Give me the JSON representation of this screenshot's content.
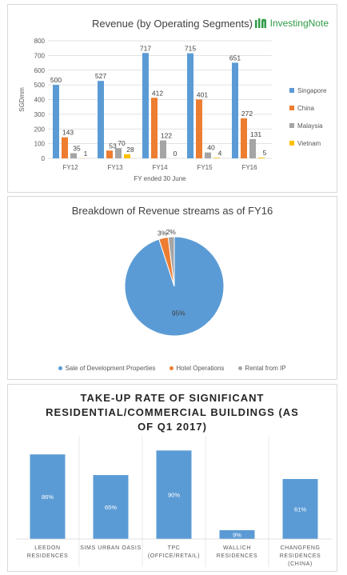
{
  "chart_data": [
    {
      "type": "bar",
      "title": "Revenue (by Operating Segments)",
      "xlabel": "FY ended 30 June",
      "ylabel": "SGDmm",
      "ylim": [
        0,
        800
      ],
      "yticks": [
        "0",
        "100",
        "200",
        "300",
        "400",
        "500",
        "600",
        "700",
        "800"
      ],
      "grid": true,
      "legend": "right",
      "categories": [
        "FY12",
        "FY13",
        "FY14",
        "FY15",
        "FY16"
      ],
      "series": [
        {
          "name": "Singapore",
          "color": "#5b9bd5",
          "values": [
            500,
            527,
            717,
            715,
            651
          ],
          "labels": [
            "500",
            "527",
            "717",
            "715",
            "651"
          ]
        },
        {
          "name": "China",
          "color": "#ed7d31",
          "values": [
            143,
            53,
            412,
            401,
            272
          ],
          "labels": [
            "143",
            "53",
            "412",
            "401",
            "272"
          ]
        },
        {
          "name": "Malaysia",
          "color": "#a5a5a5",
          "values": [
            35,
            70,
            122,
            40,
            131
          ],
          "labels": [
            "35",
            "70",
            "122",
            "40",
            "131"
          ]
        },
        {
          "name": "Vietnam",
          "color": "#ffc000",
          "values": [
            1,
            28,
            0,
            4,
            5
          ],
          "labels": [
            "1",
            "28",
            "0",
            "4",
            "5"
          ]
        }
      ]
    },
    {
      "type": "pie",
      "title": "Breakdown of Revenue streams as of FY16",
      "legend": "bottom",
      "slices": [
        {
          "name": "Sale of Development Properties",
          "value": 95,
          "label": "95%",
          "color": "#5b9bd5"
        },
        {
          "name": "Hotel Operations",
          "value": 3,
          "label": "3%",
          "color": "#ed7d31"
        },
        {
          "name": "Rental from IP",
          "value": 2,
          "label": "2%",
          "color": "#a5a5a5"
        }
      ]
    },
    {
      "type": "bar",
      "title_lines": [
        "TAKE-UP RATE OF SIGNIFICANT",
        "RESIDENTIAL/COMMERCIAL BUILDINGS (AS",
        "OF Q1 2017)"
      ],
      "ylim": [
        0,
        100
      ],
      "grid": false,
      "categories": [
        [
          "LEEDON",
          "RESIDENCES"
        ],
        [
          "SIMS URBAN OASIS"
        ],
        [
          "TPC",
          "(OFFICE/RETAIL)"
        ],
        [
          "WALLICH",
          "RESIDENCES"
        ],
        [
          "CHANGFENG",
          "RESIDENCES",
          "(CHINA)"
        ]
      ],
      "values": [
        86,
        65,
        90,
        9,
        61
      ],
      "labels": [
        "86%",
        "65%",
        "90%",
        "9%",
        "61%"
      ],
      "color": "#5b9bd5"
    }
  ],
  "brand": {
    "name": "InvestingNote",
    "color": "#2e9b47",
    "icon": "investingnote-logo-icon"
  }
}
